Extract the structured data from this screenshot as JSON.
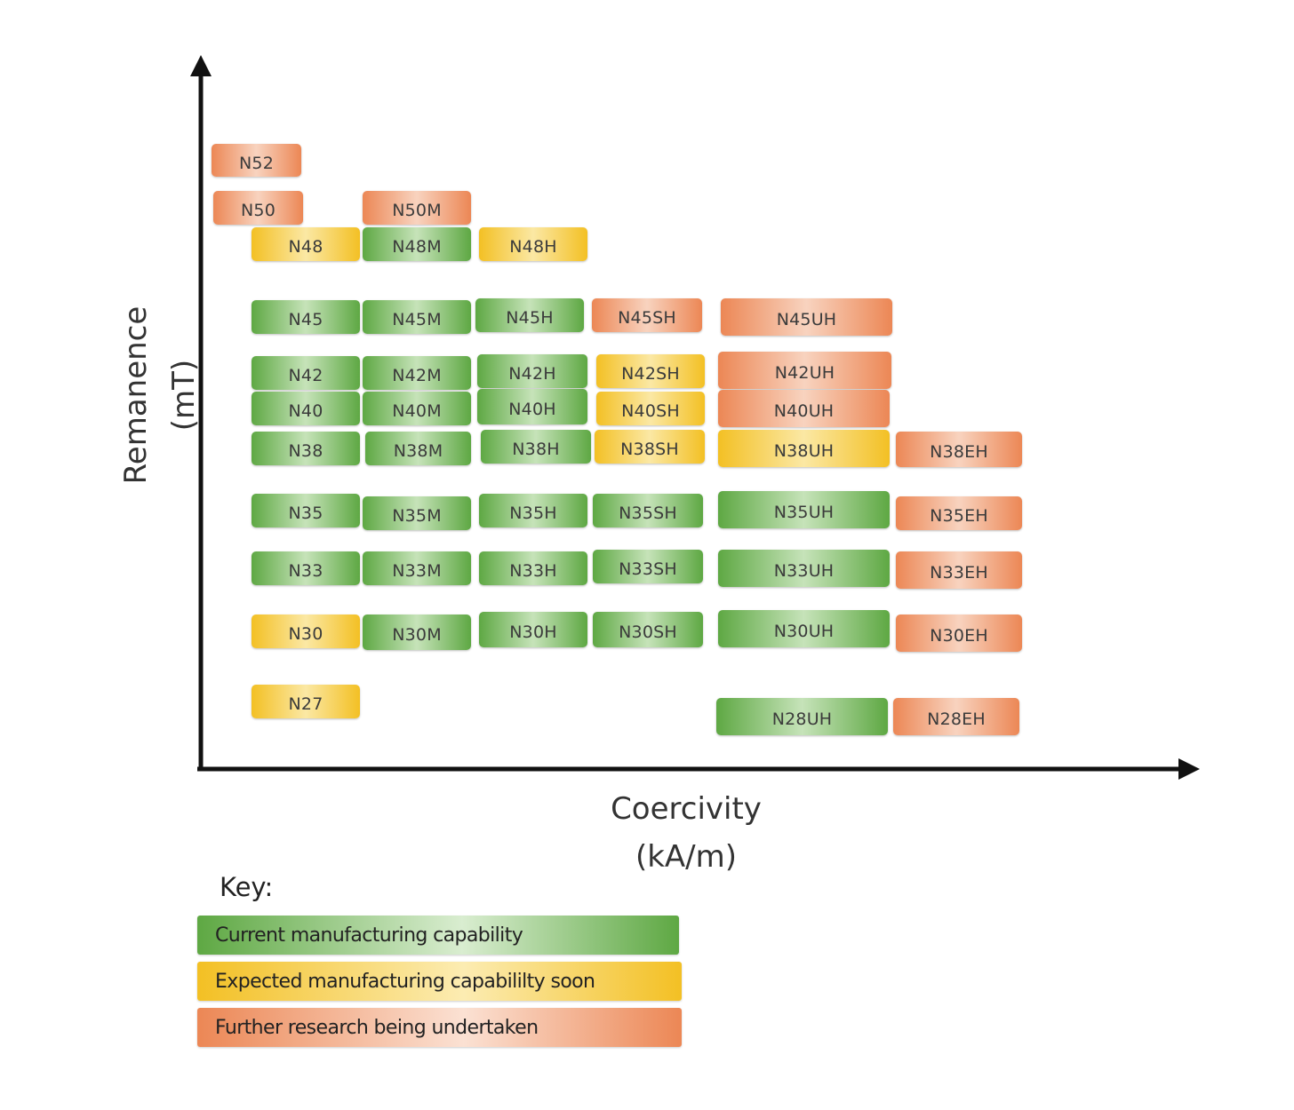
{
  "axes": {
    "y_label": "Remanence",
    "y_unit": "(mT)",
    "x_label": "Coercivity",
    "x_unit": "(kA/m)"
  },
  "colors": {
    "green": "#5ea843",
    "yellow": "#f3c024",
    "orange": "#ec8755",
    "axis": "#111111"
  },
  "grades": [
    {
      "label": "N52",
      "status": "orange"
    },
    {
      "label": "N50",
      "status": "orange"
    },
    {
      "label": "N50M",
      "status": "orange"
    },
    {
      "label": "N48",
      "status": "yellow"
    },
    {
      "label": "N48M",
      "status": "green"
    },
    {
      "label": "N48H",
      "status": "yellow"
    },
    {
      "label": "N45",
      "status": "green"
    },
    {
      "label": "N45M",
      "status": "green"
    },
    {
      "label": "N45H",
      "status": "green"
    },
    {
      "label": "N45SH",
      "status": "orange"
    },
    {
      "label": "N45UH",
      "status": "orange"
    },
    {
      "label": "N42",
      "status": "green"
    },
    {
      "label": "N42M",
      "status": "green"
    },
    {
      "label": "N42H",
      "status": "green"
    },
    {
      "label": "N42SH",
      "status": "yellow"
    },
    {
      "label": "N42UH",
      "status": "orange"
    },
    {
      "label": "N40",
      "status": "green"
    },
    {
      "label": "N40M",
      "status": "green"
    },
    {
      "label": "N40H",
      "status": "green"
    },
    {
      "label": "N40SH",
      "status": "yellow"
    },
    {
      "label": "N40UH",
      "status": "orange"
    },
    {
      "label": "N38",
      "status": "green"
    },
    {
      "label": "N38M",
      "status": "green"
    },
    {
      "label": "N38H",
      "status": "green"
    },
    {
      "label": "N38SH",
      "status": "yellow"
    },
    {
      "label": "N38UH",
      "status": "yellow"
    },
    {
      "label": "N38EH",
      "status": "orange"
    },
    {
      "label": "N35",
      "status": "green"
    },
    {
      "label": "N35M",
      "status": "green"
    },
    {
      "label": "N35H",
      "status": "green"
    },
    {
      "label": "N35SH",
      "status": "green"
    },
    {
      "label": "N35UH",
      "status": "green"
    },
    {
      "label": "N35EH",
      "status": "orange"
    },
    {
      "label": "N33",
      "status": "green"
    },
    {
      "label": "N33M",
      "status": "green"
    },
    {
      "label": "N33H",
      "status": "green"
    },
    {
      "label": "N33SH",
      "status": "green"
    },
    {
      "label": "N33UH",
      "status": "green"
    },
    {
      "label": "N33EH",
      "status": "orange"
    },
    {
      "label": "N30",
      "status": "yellow"
    },
    {
      "label": "N30M",
      "status": "green"
    },
    {
      "label": "N30H",
      "status": "green"
    },
    {
      "label": "N30SH",
      "status": "green"
    },
    {
      "label": "N30UH",
      "status": "green"
    },
    {
      "label": "N30EH",
      "status": "orange"
    },
    {
      "label": "N27",
      "status": "yellow"
    },
    {
      "label": "N28UH",
      "status": "green"
    },
    {
      "label": "N28EH",
      "status": "orange"
    }
  ],
  "key": {
    "title": "Key:",
    "items": [
      {
        "label": "Current manufacturing capability",
        "status": "green"
      },
      {
        "label": "Expected manufacturing capabililty soon",
        "status": "yellow"
      },
      {
        "label": "Further research being undertaken",
        "status": "orange"
      }
    ]
  }
}
